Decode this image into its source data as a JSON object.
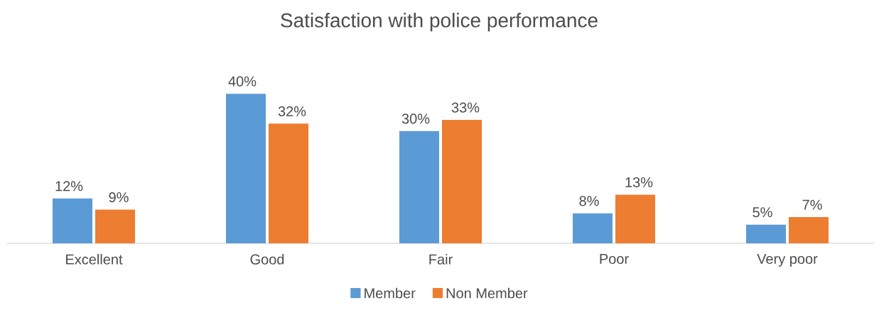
{
  "chart_data": {
    "type": "bar",
    "title": "Satisfaction with police performance",
    "categories": [
      "Excellent",
      "Good",
      "Fair",
      "Poor",
      "Very poor"
    ],
    "series": [
      {
        "name": "Member",
        "color": "#5b9bd5",
        "values": [
          12,
          40,
          30,
          8,
          5
        ],
        "value_labels": [
          "12%",
          "40%",
          "30%",
          "8%",
          "5%"
        ]
      },
      {
        "name": "Non Member",
        "color": "#ed7d31",
        "values": [
          9,
          32,
          33,
          13,
          7
        ],
        "value_labels": [
          "9%",
          "32%",
          "33%",
          "13%",
          "7%"
        ]
      }
    ],
    "legend": "bottom"
  }
}
